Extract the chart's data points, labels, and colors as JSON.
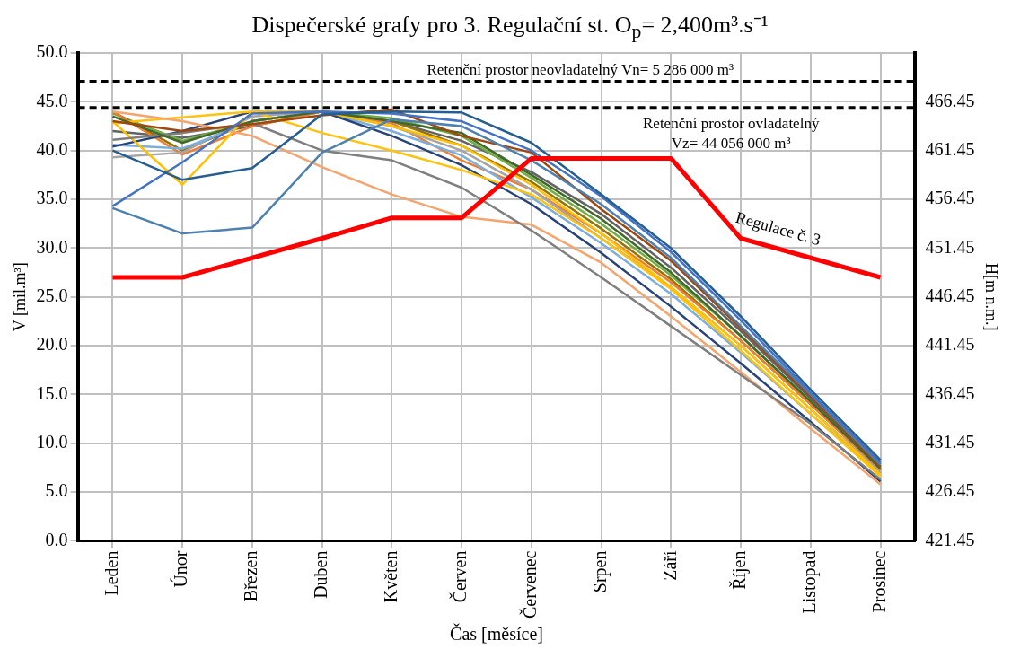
{
  "chart_data": {
    "type": "line",
    "title": "Dispečerské grafy pro 3. Regulační st. O$_{p}$= 2,400m³.s⁻¹",
    "ylabel": "V [mil.m³]",
    "y2label": "H[m n.m.]",
    "xlabel": "Čas [měsíce]",
    "categories": [
      "Leden",
      "Únor",
      "Březen",
      "Duben",
      "Květen",
      "Červen",
      "Červenec",
      "Srpen",
      "Září",
      "Říjen",
      "Listopad",
      "Prosinec"
    ],
    "series": [
      {
        "color": "#255e91",
        "values": [
          40,
          37,
          38.2,
          43.7,
          44,
          43.9,
          40.8,
          35.5,
          30,
          23,
          15.5,
          8.3
        ]
      },
      {
        "color": "#4472c4",
        "values": [
          34.3,
          38.8,
          43.8,
          44,
          43.8,
          43,
          40,
          35.3,
          29.6,
          22.6,
          15.2,
          8
        ]
      },
      {
        "color": "#4e81b0",
        "values": [
          34.1,
          31.5,
          32.1,
          39.8,
          43.2,
          42.5,
          39,
          34.5,
          29,
          22,
          15,
          7.8
        ]
      },
      {
        "color": "#9e480e",
        "values": [
          43,
          42,
          42.7,
          43.6,
          44.2,
          41.5,
          39.8,
          34,
          28.7,
          21.8,
          14.8,
          7.6
        ]
      },
      {
        "color": "#43682b",
        "values": [
          43.5,
          40.8,
          43,
          44,
          43,
          41.8,
          37.5,
          33,
          27.5,
          21,
          14.3,
          7.4
        ]
      },
      {
        "color": "#7f7f7f",
        "values": [
          41.1,
          41.8,
          42.8,
          40,
          39,
          36.2,
          31.8,
          27,
          22,
          17,
          12,
          6.3
        ]
      },
      {
        "color": "#f4a46c",
        "values": [
          44,
          43,
          41.5,
          38.3,
          35.5,
          33.2,
          32.4,
          28.5,
          23,
          17.3,
          11.5,
          5.8
        ]
      },
      {
        "color": "#ffc000",
        "values": [
          43,
          36.5,
          44,
          44,
          42.5,
          40.5,
          36.5,
          31.5,
          26,
          20,
          13.5,
          6.8
        ]
      },
      {
        "color": "#ffc20e",
        "values": [
          42.8,
          43.4,
          44,
          41.8,
          40,
          38,
          35.5,
          31,
          25.8,
          19.5,
          13,
          6.6
        ]
      },
      {
        "color": "#264478",
        "values": [
          40.4,
          42,
          44,
          44,
          41.5,
          38.5,
          34.5,
          29.5,
          24,
          18.2,
          12.2,
          6.1
        ]
      },
      {
        "color": "#7cafdd",
        "values": [
          40.6,
          40.2,
          43,
          44,
          42,
          39.5,
          35.2,
          30.5,
          25.3,
          19.3,
          13,
          6.9
        ]
      },
      {
        "color": "#a5a5a5",
        "values": [
          39.3,
          39.8,
          43.5,
          44,
          42.5,
          40,
          36,
          31,
          26,
          20,
          13.5,
          7
        ]
      },
      {
        "color": "#ed7d31",
        "values": [
          44,
          39.6,
          42.5,
          44,
          42.8,
          39,
          36,
          31.5,
          26.5,
          20.5,
          14,
          7.2
        ]
      },
      {
        "color": "#997300",
        "values": [
          44,
          40,
          43,
          44,
          43,
          40.5,
          36.8,
          32,
          26.8,
          20.5,
          14,
          7.3
        ]
      },
      {
        "color": "#70ad47",
        "values": [
          43.8,
          41,
          43,
          44,
          43.3,
          41.5,
          37.2,
          32.5,
          27.2,
          21,
          14.2,
          7.4
        ]
      },
      {
        "color": "#636363",
        "values": [
          42,
          41.3,
          42.5,
          44,
          43,
          41,
          37.8,
          33.5,
          28,
          21.5,
          14.6,
          7.6
        ]
      },
      {
        "name": "Regulace č. 3",
        "color": "#ff0000",
        "values": [
          27,
          27,
          29,
          31,
          33.1,
          33.1,
          39.2,
          39.2,
          39.2,
          31,
          29,
          27
        ]
      }
    ],
    "ylim": [
      0,
      50
    ],
    "yticks": [
      {
        "value": 0,
        "label": "0.0"
      },
      {
        "value": 5,
        "label": "5.0"
      },
      {
        "value": 10,
        "label": "10.0"
      },
      {
        "value": 15,
        "label": "15.0"
      },
      {
        "value": 20,
        "label": "20.0"
      },
      {
        "value": 25,
        "label": "25.0"
      },
      {
        "value": 30,
        "label": "30.0"
      },
      {
        "value": 35,
        "label": "35.0"
      },
      {
        "value": 40,
        "label": "40.0"
      },
      {
        "value": 45,
        "label": "45.0"
      },
      {
        "value": 50,
        "label": "50.0"
      }
    ],
    "y2lim": [
      421.45,
      471.45
    ],
    "y2ticks": [
      421.45,
      426.45,
      431.45,
      436.45,
      441.45,
      446.45,
      451.45,
      456.45,
      461.45,
      466.45
    ],
    "ref_lines": [
      {
        "axis": "y",
        "value": 47.1,
        "color": "#000000",
        "line_style": "dashed"
      },
      {
        "axis": "y",
        "value": 44.4,
        "color": "#000000",
        "line_style": "dashed"
      }
    ],
    "annotations": [
      "Retenční prostor neovladatelný Vn= 5 286 000 m³",
      "Retenční prostor ovladatelný\nVz= 44 056 000 m³"
    ],
    "grid": true,
    "legend": false,
    "marker": "none",
    "line_style": "solid"
  }
}
